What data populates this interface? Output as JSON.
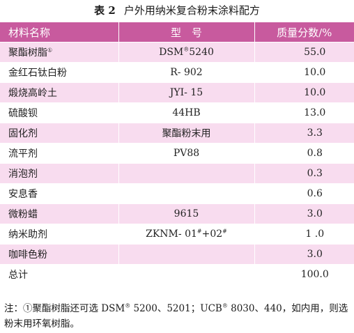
{
  "caption": {
    "number": "表 2",
    "title": "户外用纳米复合粉末涂料配方"
  },
  "table": {
    "headers": [
      "材料名称",
      "型　号",
      "质量分数/%"
    ],
    "rows": [
      {
        "name": "聚酯树脂",
        "name_sup": "①",
        "model": "DSM",
        "model_sup": "®",
        "model_tail": "5240",
        "fraction": "55.0"
      },
      {
        "name": "金红石钛白粉",
        "model": "R- 902",
        "fraction": "10.0"
      },
      {
        "name": "煅烧高岭土",
        "model": "JYI- 15",
        "fraction": "10.0"
      },
      {
        "name": "硫酸钡",
        "model": "44HB",
        "fraction": "13.0"
      },
      {
        "name": "固化剂",
        "model": "聚酯粉末用",
        "fraction": "3.3"
      },
      {
        "name": "流平剂",
        "model": "PV88",
        "fraction": "0.8"
      },
      {
        "name": "消泡剂",
        "model": "",
        "fraction": "0.3"
      },
      {
        "name": "安息香",
        "model": "",
        "fraction": "0.6"
      },
      {
        "name": "微粉蜡",
        "model": "9615",
        "fraction": "3.0"
      },
      {
        "name": "纳米助剂",
        "model": "ZKNM- 01",
        "model_sup": "#",
        "model_tail": "+02",
        "model_sup2": "#",
        "fraction": "1 .0"
      },
      {
        "name": "咖啡色粉",
        "model": "",
        "fraction": "3.0"
      },
      {
        "name": "总计",
        "model": "",
        "fraction": "100.0"
      }
    ]
  },
  "note": {
    "prefix": "注：①聚酯树脂还可选 DSM",
    "sup1": "®",
    "mid1": " 5200、5201；UCB",
    "sup2": "®",
    "mid2": " 8030、440，如内用，则选粉末用环氧树脂。"
  },
  "colors": {
    "header_bg": "#c85a9e",
    "stripe_bg": "#f8dcef"
  }
}
